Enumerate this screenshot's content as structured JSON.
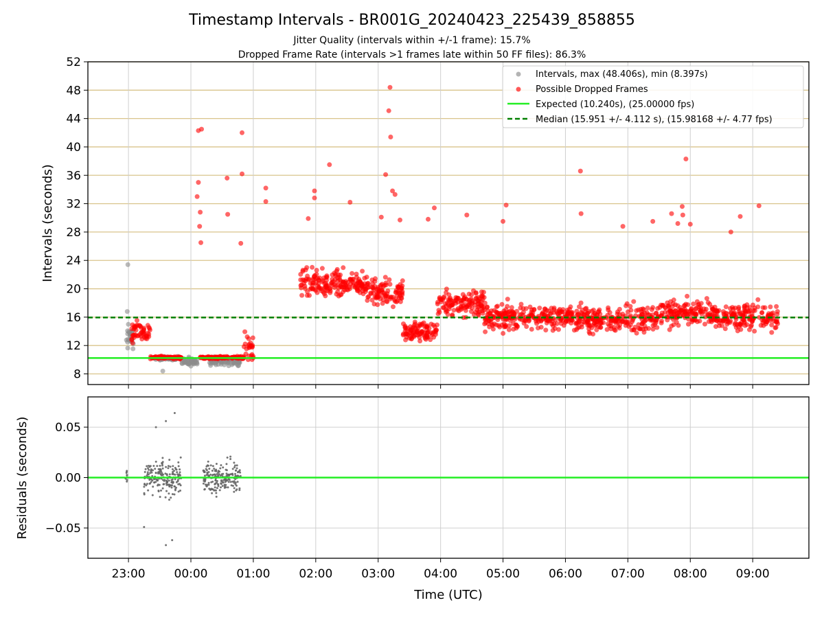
{
  "figure": {
    "title": "Timestamp Intervals - BR001G_20240423_225439_858855",
    "subtitle_1": "Jitter Quality (intervals within +/-1 frame): 15.7%",
    "subtitle_2": "Dropped Frame Rate (intervals >1 frames late within 50 FF files): 86.3%"
  },
  "chart_data": [
    {
      "type": "scatter",
      "ylabel": "Intervals (seconds)",
      "xlabel": "",
      "xlim_hours": [
        -0.65,
        10.9
      ],
      "ylim": [
        6.5,
        52
      ],
      "yticks": [
        8,
        12,
        16,
        20,
        24,
        28,
        32,
        36,
        40,
        44,
        48,
        52
      ],
      "ytick_labels": [
        "8",
        "12",
        "16",
        "20",
        "24",
        "28",
        "32",
        "36",
        "40",
        "44",
        "48",
        "52"
      ],
      "xticks_hours": [
        0,
        1,
        2,
        3,
        4,
        5,
        6,
        7,
        8,
        9,
        10
      ],
      "grid": "horizontal gold lines + vertical grey lines",
      "legend_placement": "top-right",
      "legend": [
        "Intervals, max (48.406s), min (8.397s)",
        "Possible Dropped Frames",
        "Expected (10.240s), (25.00000 fps)",
        "Median (15.951 +/- 4.112 s), (15.98168 +/- 4.77 fps)"
      ],
      "expected_interval": 10.24,
      "median_interval": 15.951,
      "max_interval": 48.406,
      "min_interval": 8.397,
      "colors": {
        "intervals": "#8c8c8c",
        "dropped": "#ff0000",
        "expected": "#22ee22",
        "median": "#007f00",
        "hgrid": "#d9c48b",
        "vgrid": "#cfcfcf"
      },
      "series": [
        {
          "name": "Possible Dropped Frames",
          "note": "main body of points summarised as segments (start hour after 23:00, end hour, mean interval, spread)",
          "segments": [
            [
              0.05,
              0.35,
              14.0,
              2.5
            ],
            [
              0.35,
              0.85,
              10.3,
              0.3
            ],
            [
              1.15,
              1.6,
              10.3,
              0.3
            ],
            [
              1.65,
              1.85,
              10.3,
              0.3
            ],
            [
              1.85,
              2.0,
              11.5,
              4.0
            ],
            [
              2.75,
              3.2,
              20.5,
              3.5
            ],
            [
              3.2,
              3.8,
              20.8,
              3.0
            ],
            [
              3.8,
              4.4,
              19.5,
              3.0
            ],
            [
              4.4,
              4.95,
              14.0,
              2.0
            ],
            [
              4.95,
              5.7,
              18.0,
              3.5
            ],
            [
              5.7,
              7.0,
              16.0,
              3.0
            ],
            [
              7.0,
              8.5,
              15.8,
              3.0
            ],
            [
              8.5,
              9.4,
              16.5,
              3.0
            ],
            [
              9.4,
              10.4,
              16.0,
              3.0
            ]
          ],
          "outliers": [
            [
              1.12,
              42.3
            ],
            [
              1.17,
              42.5
            ],
            [
              1.1,
              33.0
            ],
            [
              1.12,
              35.0
            ],
            [
              1.15,
              30.8
            ],
            [
              1.14,
              28.8
            ],
            [
              1.16,
              26.5
            ],
            [
              1.58,
              35.6
            ],
            [
              1.59,
              30.5
            ],
            [
              1.82,
              42.0
            ],
            [
              1.82,
              36.2
            ],
            [
              1.8,
              26.4
            ],
            [
              2.2,
              34.2
            ],
            [
              2.2,
              32.3
            ],
            [
              2.88,
              29.9
            ],
            [
              2.98,
              33.8
            ],
            [
              2.98,
              32.8
            ],
            [
              3.22,
              37.5
            ],
            [
              3.55,
              32.2
            ],
            [
              4.05,
              30.1
            ],
            [
              4.12,
              36.1
            ],
            [
              4.17,
              45.1
            ],
            [
              4.19,
              48.4
            ],
            [
              4.2,
              41.4
            ],
            [
              4.23,
              33.8
            ],
            [
              4.27,
              33.3
            ],
            [
              4.35,
              29.7
            ],
            [
              4.8,
              29.8
            ],
            [
              4.9,
              31.4
            ],
            [
              5.42,
              30.4
            ],
            [
              6.05,
              31.8
            ],
            [
              6.0,
              29.5
            ],
            [
              7.24,
              36.6
            ],
            [
              7.25,
              30.6
            ],
            [
              7.92,
              28.8
            ],
            [
              8.4,
              29.5
            ],
            [
              8.7,
              30.6
            ],
            [
              8.8,
              29.2
            ],
            [
              8.87,
              31.6
            ],
            [
              8.93,
              38.3
            ],
            [
              8.88,
              30.4
            ],
            [
              9.65,
              28.0
            ],
            [
              9.8,
              30.2
            ],
            [
              10.1,
              31.7
            ],
            [
              9.0,
              29.1
            ]
          ]
        },
        {
          "name": "Intervals, max (48.406s), min (8.397s)",
          "segments": [
            [
              -0.05,
              0.1,
              13.0,
              3.0
            ],
            [
              0.4,
              0.8,
              10.2,
              0.4
            ],
            [
              0.85,
              1.1,
              9.7,
              1.0
            ],
            [
              1.3,
              1.8,
              9.8,
              1.0
            ]
          ],
          "outliers": [
            [
              -0.01,
              23.4
            ],
            [
              0.55,
              8.4
            ],
            [
              -0.02,
              16.8
            ]
          ]
        }
      ]
    },
    {
      "type": "scatter",
      "ylabel": "Residuals (seconds)",
      "xlabel": "Time (UTC)",
      "xlim_hours": [
        -0.65,
        10.9
      ],
      "ylim": [
        -0.08,
        0.08
      ],
      "yticks": [
        -0.05,
        0.0,
        0.05
      ],
      "ytick_labels": [
        "−0.05",
        "0.00",
        "0.05"
      ],
      "xticks_hours": [
        0,
        1,
        2,
        3,
        4,
        5,
        6,
        7,
        8,
        9,
        10
      ],
      "xtick_labels": [
        "23:00",
        "00:00",
        "01:00",
        "02:00",
        "03:00",
        "04:00",
        "05:00",
        "06:00",
        "07:00",
        "08:00",
        "09:00"
      ],
      "zero_line": 0.0,
      "series": [
        {
          "name": "",
          "segments": [
            [
              -0.05,
              -0.02,
              0.0,
              0.02
            ],
            [
              0.25,
              0.85,
              0.0,
              0.03
            ],
            [
              1.2,
              1.8,
              0.0,
              0.025
            ]
          ],
          "outliers": [
            [
              0.74,
              0.064
            ],
            [
              0.6,
              0.056
            ],
            [
              0.44,
              0.05
            ],
            [
              0.6,
              -0.067
            ],
            [
              0.25,
              -0.049
            ],
            [
              0.7,
              -0.062
            ]
          ]
        }
      ]
    }
  ]
}
